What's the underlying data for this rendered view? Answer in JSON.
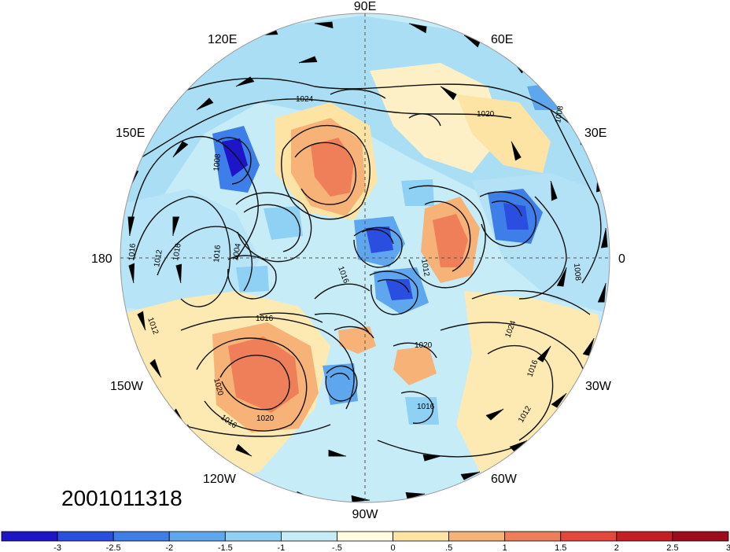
{
  "date_label": "2001011318",
  "longitude_labels": {
    "lon_90e": "90E",
    "lon_60e": "60E",
    "lon_120e": "120E",
    "lon_150e": "150E",
    "lon_30e": "30E",
    "lon_180": "180",
    "lon_0": "0",
    "lon_150w": "150W",
    "lon_30w": "30W",
    "lon_120w": "120W",
    "lon_60w": "60W",
    "lon_90w": "90W"
  },
  "contour_labels": [
    "1024",
    "1020",
    "1008",
    "1008",
    "1016",
    "1012",
    "1012",
    "1016",
    "1016",
    "1004",
    "1016",
    "1016",
    "1024",
    "1016",
    "1016",
    "1020",
    "1016",
    "1020",
    "1012",
    "1008",
    "1020",
    "1012"
  ],
  "colorbar": {
    "colors": [
      "#1e14c8",
      "#2a4fe0",
      "#3d7ee8",
      "#5ea6ee",
      "#8fd0f5",
      "#c6ecf8",
      "#fffce0",
      "#fde4a4",
      "#f7b278",
      "#ef7f58",
      "#e4473b",
      "#c71e26",
      "#9e0b1c"
    ],
    "tick_labels": [
      "-3",
      "-2.5",
      "-2",
      "-1.5",
      "-1",
      "-.5",
      "0",
      ".5",
      "1",
      "1.5",
      "2",
      "2.5",
      "3"
    ]
  }
}
